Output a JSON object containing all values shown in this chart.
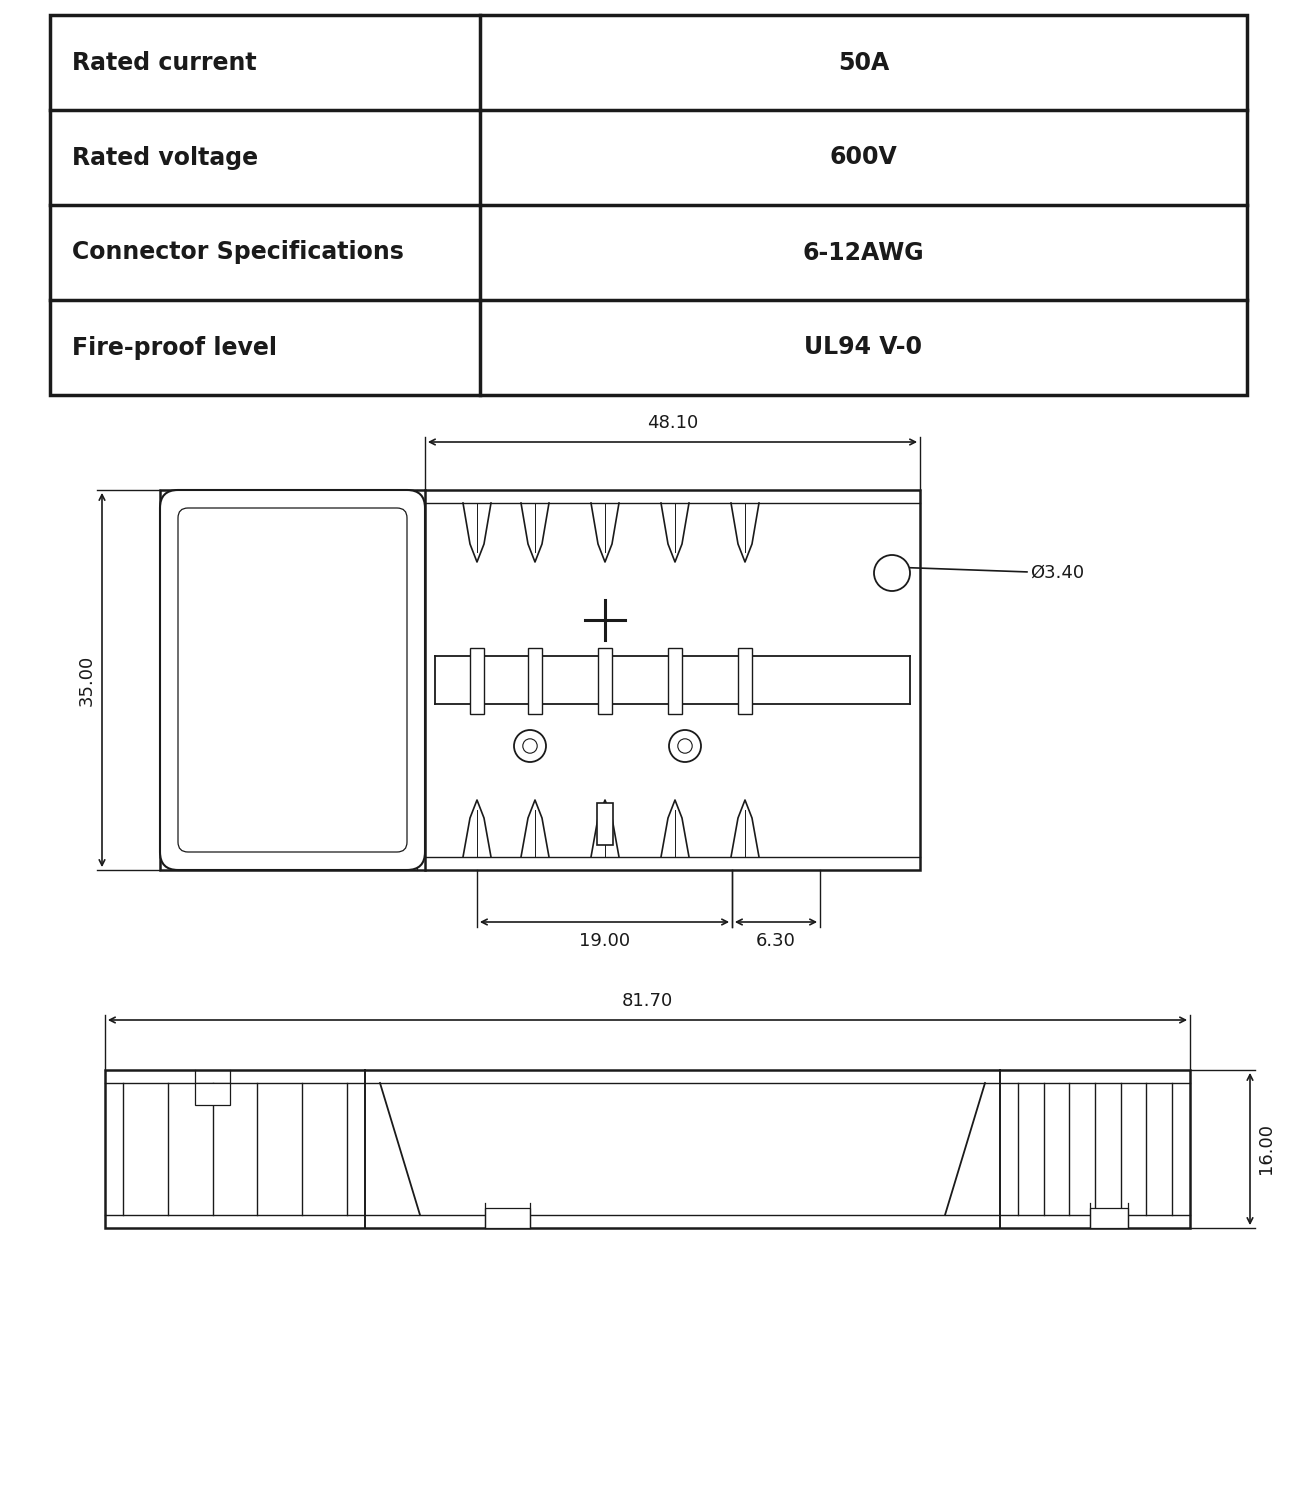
{
  "table_rows": [
    [
      "Rated current",
      "50A"
    ],
    [
      "Rated voltage",
      "600V"
    ],
    [
      "Connector Specifications",
      "6-12AWG"
    ],
    [
      "Fire-proof level",
      "UL94 V-0"
    ]
  ],
  "background_color": "#ffffff",
  "line_color": "#1a1a1a",
  "text_color": "#1a1a1a",
  "table_font_size": 17,
  "dim_font_size": 13,
  "dim_48_10": "48.10",
  "dim_35_00": "35.00",
  "dim_03_40": "Ø3.40",
  "dim_19_00": "19.00",
  "dim_6_30": "6.30",
  "dim_81_70": "81.70",
  "dim_16_00": "16.00"
}
